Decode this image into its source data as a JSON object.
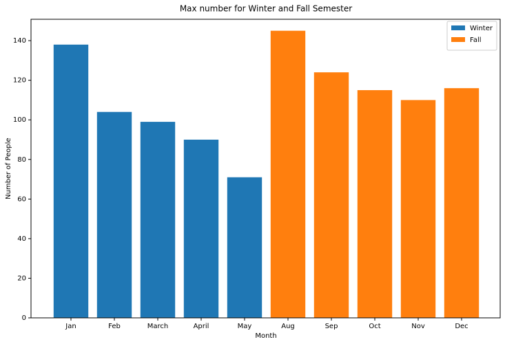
{
  "chart_data": {
    "type": "bar",
    "title": "Max number for Winter and Fall Semester",
    "x_label": "Month",
    "y_label": "Number of People",
    "categories": [
      "Jan",
      "Feb",
      "March",
      "April",
      "May",
      "Aug",
      "Sep",
      "Oct",
      "Nov",
      "Dec"
    ],
    "series": [
      {
        "name": "Winter",
        "color": "#1f77b4",
        "values": [
          138,
          104,
          99,
          90,
          71,
          null,
          null,
          null,
          null,
          null
        ]
      },
      {
        "name": "Fall",
        "color": "#ff7f0e",
        "values": [
          null,
          null,
          null,
          null,
          null,
          145,
          124,
          115,
          110,
          116
        ]
      }
    ],
    "ylim": [
      0,
      150.8
    ],
    "yticks": [
      0,
      20,
      40,
      60,
      80,
      100,
      120,
      140
    ],
    "grid": false,
    "legend": "upper right"
  }
}
